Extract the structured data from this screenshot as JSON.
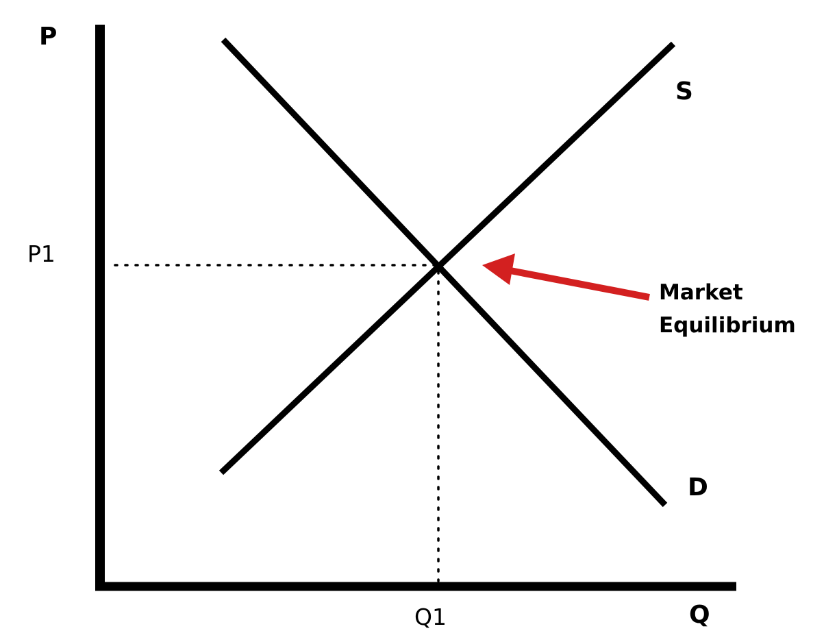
{
  "axes": {
    "y_label": "P",
    "x_label": "Q"
  },
  "ticks": {
    "price": "P1",
    "quantity": "Q1"
  },
  "curves": {
    "supply": "S",
    "demand": "D"
  },
  "annotation": {
    "line1": "Market",
    "line2": "Equilibrium"
  },
  "colors": {
    "lines": "#000000",
    "arrow": "#d32020",
    "background": "#ffffff"
  }
}
